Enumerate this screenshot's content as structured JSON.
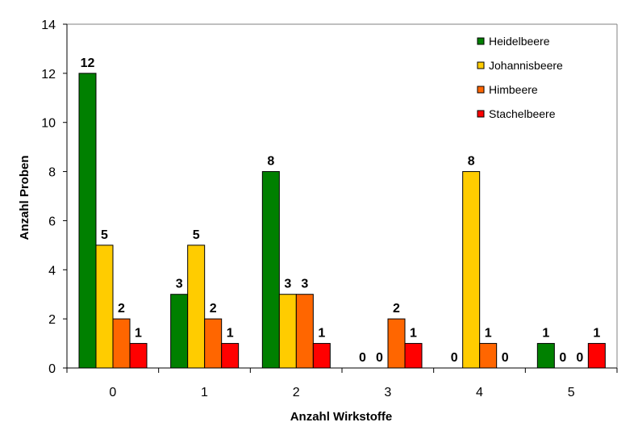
{
  "chart_data": {
    "type": "bar",
    "categories": [
      "0",
      "1",
      "2",
      "3",
      "4",
      "5"
    ],
    "series": [
      {
        "name": "Heidelbeere",
        "color": "#008000",
        "values": [
          12,
          3,
          8,
          0,
          0,
          1
        ]
      },
      {
        "name": "Johannisbeere",
        "color": "#FFCC00",
        "values": [
          5,
          5,
          3,
          0,
          8,
          0
        ]
      },
      {
        "name": "Himbeere",
        "color": "#FF6600",
        "values": [
          2,
          2,
          3,
          2,
          1,
          0
        ]
      },
      {
        "name": "Stachelbeere",
        "color": "#FF0000",
        "values": [
          1,
          1,
          1,
          1,
          0,
          1
        ]
      }
    ],
    "xlabel": "Anzahl Wirkstoffe",
    "ylabel": "Anzahl Proben",
    "ylim": [
      0,
      14
    ],
    "yticks": [
      0,
      2,
      4,
      6,
      8,
      10,
      12,
      14
    ],
    "data_labels": [
      [
        "12",
        "5",
        "2",
        "1"
      ],
      [
        "3",
        "5",
        "2",
        "1"
      ],
      [
        "8",
        "3",
        "3",
        "1"
      ],
      [
        "0",
        "0",
        "2",
        "1"
      ],
      [
        "0",
        "8",
        "1",
        "0"
      ],
      [
        "1",
        "0",
        "0",
        "1"
      ]
    ],
    "grid": false,
    "legend_position": "top-right"
  }
}
